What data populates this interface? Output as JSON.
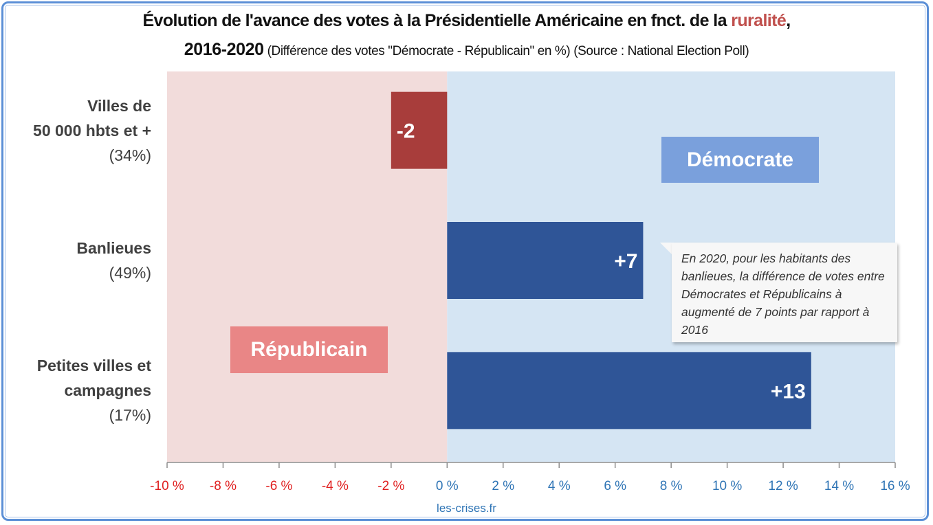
{
  "title": {
    "main": "Évolution de l'avance des votes à la Présidentielle Américaine en fnct. de la ",
    "highlight": "ruralité",
    "trail": ",",
    "years": "2016-2020",
    "subtitle": " (Différence des votes \"Démocrate - Républicain\" en %) (Source : National Election Poll)"
  },
  "source": "les-crises.fr",
  "tags": {
    "democrat": "Démocrate",
    "republican": "Républicain"
  },
  "note": "En 2020, pour les habitants des banlieues, la différence de votes entre Démocrates et Républicains à augmenté de 7 points par rapport à 2016",
  "colors": {
    "republican_bg": "#f2dcdb",
    "democrat_bg": "#d5e5f3",
    "negative_bar": "#a83d3b",
    "positive_bar": "#2f5597",
    "democrat_tag": "#7aa0dc",
    "republican_tag": "#e98686",
    "negative_tick": "#e02020",
    "positive_tick": "#2e74b5"
  },
  "chart_data": {
    "type": "bar",
    "orientation": "horizontal",
    "title": "Évolution de l'avance des votes à la Présidentielle Américaine en fnct. de la ruralité, 2016-2020",
    "subtitle": "(Différence des votes \"Démocrate - Républicain\" en %) (Source : National Election Poll)",
    "xlabel": "",
    "ylabel": "",
    "xlim": [
      -10,
      16
    ],
    "grid": false,
    "categories": [
      {
        "name": "Villes de 50 000 hbts et +",
        "line1": "Villes de",
        "line2": "50 000 hbts et +",
        "share": "(34%)"
      },
      {
        "name": "Banlieues",
        "line1": "Banlieues",
        "line2": "",
        "share": "(49%)"
      },
      {
        "name": "Petites villes et campagnes",
        "line1": "Petites villes et",
        "line2": "campagnes",
        "share": "(17%)"
      }
    ],
    "values": [
      -2,
      7,
      13
    ],
    "data_labels": [
      "-2",
      "+7",
      "+13"
    ],
    "x_ticks": [
      -10,
      -8,
      -6,
      -4,
      -2,
      0,
      2,
      4,
      6,
      8,
      10,
      12,
      14,
      16
    ],
    "x_tick_labels": [
      "-10 %",
      "-8 %",
      "-6 %",
      "-4 %",
      "-2 %",
      "0 %",
      "2 %",
      "4 %",
      "6 %",
      "8 %",
      "10 %",
      "12 %",
      "14 %",
      "16 %"
    ]
  }
}
